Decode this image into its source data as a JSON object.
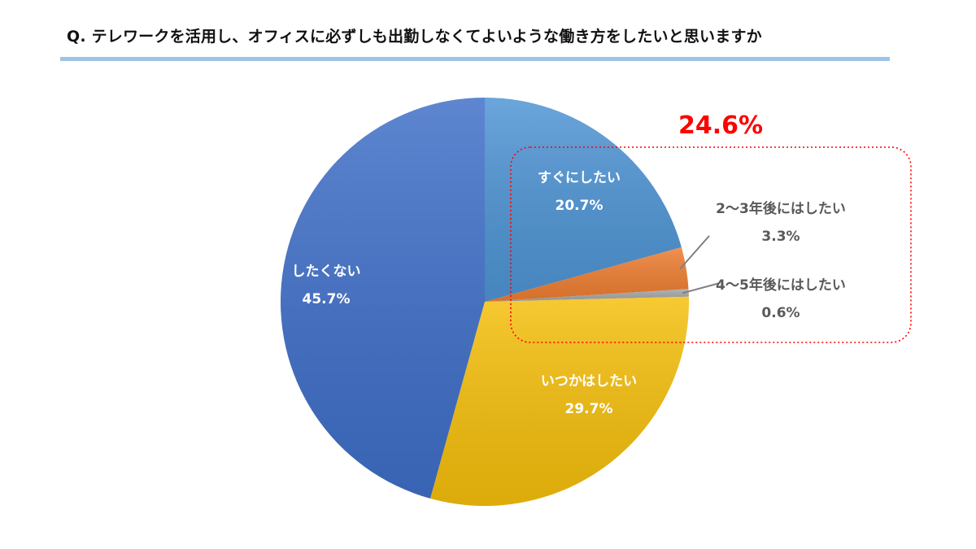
{
  "page": {
    "title": "Q. テレワークを活用し、オフィスに必ずしも出勤しなくてよいような働き方をしたいと思いますか",
    "rule_color": "#9dc3e6"
  },
  "chart_data": {
    "type": "pie",
    "title": "Q. テレワークを活用し、オフィスに必ずしも出勤しなくてよいような働き方をしたいと思いますか",
    "start_angle_deg": 0,
    "direction": "clockwise",
    "slices": [
      {
        "label": "すぐにしたい",
        "value": 20.7,
        "value_label": "20.7%",
        "color": "#4e94d4",
        "label_placement": "inside"
      },
      {
        "label": "2～3年後にはしたい",
        "value": 3.3,
        "value_label": "3.3%",
        "color": "#ed7d31",
        "label_placement": "outside"
      },
      {
        "label": "4～5年後にはしたい",
        "value": 0.6,
        "value_label": "0.6%",
        "color": "#a5a5a5",
        "label_placement": "outside"
      },
      {
        "label": "いつかはしたい",
        "value": 29.7,
        "value_label": "29.7%",
        "color": "#f5bf0c",
        "label_placement": "inside"
      },
      {
        "label": "したくない",
        "value": 45.7,
        "value_label": "45.7%",
        "color": "#3f6fc8",
        "label_placement": "inside"
      }
    ],
    "annotation": {
      "text": "24.6%",
      "color": "#ff0000",
      "groups_slices": [
        "すぐにしたい",
        "2～3年後にはしたい",
        "4～5年後にはしたい"
      ],
      "box_style": "dotted",
      "box_color": "#ff0000"
    },
    "legend": "none"
  }
}
